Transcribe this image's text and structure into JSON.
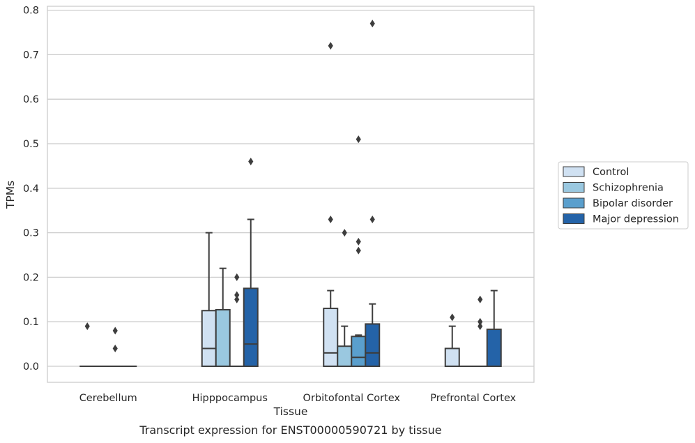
{
  "caption": "Transcript expression for ENST00000590721 by tissue",
  "chart_data": {
    "type": "box",
    "xlabel": "Tissue",
    "ylabel": "TPMs",
    "ylim": [
      -0.037,
      0.812
    ],
    "yticks": [
      "0.0",
      "0.1",
      "0.2",
      "0.3",
      "0.4",
      "0.5",
      "0.6",
      "0.7",
      "0.8"
    ],
    "grid": "horizontal",
    "legend_position": "right",
    "categories": [
      "Cerebellum",
      "Hipppocampus",
      "Orbitofontal Cortex",
      "Prefrontal Cortex"
    ],
    "series": [
      {
        "name": "Control",
        "color": "#d0e1f2",
        "boxes": [
          {
            "q1": 0,
            "median": 0,
            "q3": 0,
            "whisker_low": 0,
            "whisker_high": 0,
            "outliers": [
              0.09
            ]
          },
          {
            "q1": 0,
            "median": 0.04,
            "q3": 0.125,
            "whisker_low": 0,
            "whisker_high": 0.3,
            "outliers": []
          },
          {
            "q1": 0,
            "median": 0.03,
            "q3": 0.13,
            "whisker_low": 0,
            "whisker_high": 0.17,
            "outliers": [
              0.33,
              0.72
            ]
          },
          {
            "q1": 0,
            "median": 0,
            "q3": 0.04,
            "whisker_low": 0,
            "whisker_high": 0.09,
            "outliers": [
              0.11
            ]
          }
        ]
      },
      {
        "name": "Schizophrenia",
        "color": "#9ac8e0",
        "boxes": [
          {
            "q1": 0,
            "median": 0,
            "q3": 0,
            "whisker_low": 0,
            "whisker_high": 0,
            "outliers": []
          },
          {
            "q1": 0,
            "median": 0,
            "q3": 0.127,
            "whisker_low": 0,
            "whisker_high": 0.22,
            "outliers": []
          },
          {
            "q1": 0,
            "median": 0,
            "q3": 0.045,
            "whisker_low": 0,
            "whisker_high": 0.09,
            "outliers": [
              0.3
            ]
          },
          {
            "q1": 0,
            "median": 0,
            "q3": 0,
            "whisker_low": 0,
            "whisker_high": 0,
            "outliers": []
          }
        ]
      },
      {
        "name": "Bipolar disorder",
        "color": "#5a9fcd",
        "boxes": [
          {
            "q1": 0,
            "median": 0,
            "q3": 0,
            "whisker_low": 0,
            "whisker_high": 0,
            "outliers": [
              0.04,
              0.08
            ]
          },
          {
            "q1": 0,
            "median": 0,
            "q3": 0,
            "whisker_low": 0,
            "whisker_high": 0,
            "outliers": [
              0.15,
              0.16,
              0.2
            ]
          },
          {
            "q1": 0,
            "median": 0.02,
            "q3": 0.067,
            "whisker_low": 0,
            "whisker_high": 0.07,
            "outliers": [
              0.26,
              0.28,
              0.51
            ]
          },
          {
            "q1": 0,
            "median": 0,
            "q3": 0,
            "whisker_low": 0,
            "whisker_high": 0,
            "outliers": [
              0.09,
              0.1,
              0.15
            ]
          }
        ]
      },
      {
        "name": "Major depression",
        "color": "#2463a8",
        "boxes": [
          {
            "q1": 0,
            "median": 0,
            "q3": 0,
            "whisker_low": 0,
            "whisker_high": 0,
            "outliers": []
          },
          {
            "q1": 0,
            "median": 0.05,
            "q3": 0.175,
            "whisker_low": 0,
            "whisker_high": 0.33,
            "outliers": [
              0.46
            ]
          },
          {
            "q1": 0,
            "median": 0.03,
            "q3": 0.095,
            "whisker_low": 0,
            "whisker_high": 0.14,
            "outliers": [
              0.33,
              0.77
            ]
          },
          {
            "q1": 0,
            "median": 0,
            "q3": 0.083,
            "whisker_low": 0,
            "whisker_high": 0.17,
            "outliers": []
          }
        ]
      }
    ]
  }
}
